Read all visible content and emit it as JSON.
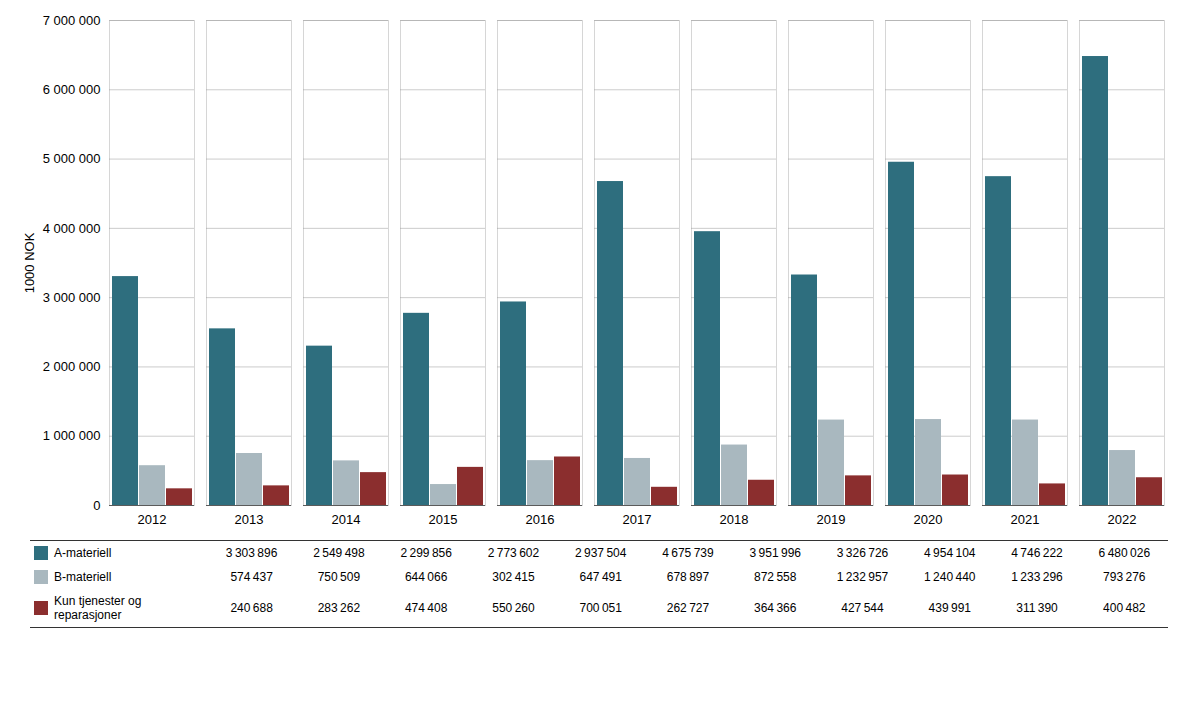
{
  "chart_data": {
    "type": "bar",
    "categories": [
      "2012",
      "2013",
      "2014",
      "2015",
      "2016",
      "2017",
      "2018",
      "2019",
      "2020",
      "2021",
      "2022"
    ],
    "series": [
      {
        "name": "A-materiell",
        "color": "#2E6E7E",
        "values": [
          3303896,
          2549498,
          2299856,
          2773602,
          2937504,
          4675739,
          3951996,
          3326726,
          4954104,
          4746222,
          6480026
        ],
        "value_labels": [
          "3 303 896",
          "2 549 498",
          "2 299 856",
          "2 773 602",
          "2 937 504",
          "4 675 739",
          "3 951 996",
          "3 326 726",
          "4 954 104",
          "4 746 222",
          "6 480 026"
        ]
      },
      {
        "name": "B-materiell",
        "color": "#A9B8BF",
        "values": [
          574437,
          750509,
          644066,
          302415,
          647491,
          678897,
          872558,
          1232957,
          1240440,
          1233296,
          793276
        ],
        "value_labels": [
          "574 437",
          "750 509",
          "644 066",
          "302 415",
          "647 491",
          "678 897",
          "872 558",
          "1 232 957",
          "1 240 440",
          "1 233 296",
          "793 276"
        ]
      },
      {
        "name": "Kun tjenester og\nreparasjoner",
        "color": "#8B2E2E",
        "values": [
          240688,
          283262,
          474408,
          550260,
          700051,
          262727,
          364366,
          427544,
          439991,
          311390,
          400482
        ],
        "value_labels": [
          "240 688",
          "283 262",
          "474 408",
          "550 260",
          "700 051",
          "262 727",
          "364 366",
          "427 544",
          "439 991",
          "311 390",
          "400 482"
        ]
      }
    ],
    "ylabel": "1000 NOK",
    "ylim": [
      0,
      7000000
    ],
    "yticks": [
      0,
      {
        "value": 1000000,
        "label": "1 000 000"
      },
      {
        "value": 2000000,
        "label": "2 000 000"
      },
      {
        "value": 3000000,
        "label": "3 000 000"
      },
      {
        "value": 4000000,
        "label": "4 000 000"
      },
      {
        "value": 5000000,
        "label": "5 000 000"
      },
      {
        "value": 6000000,
        "label": "6 000 000"
      },
      {
        "value": 7000000,
        "label": "7 000 000"
      }
    ],
    "grid": true,
    "legend": "bottom"
  }
}
